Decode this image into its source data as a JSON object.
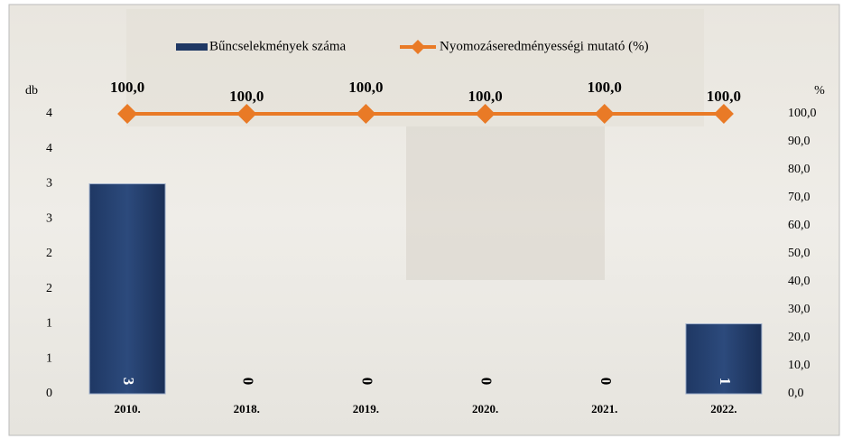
{
  "chart_data": {
    "type": "bar",
    "categories": [
      "2010.",
      "2018.",
      "2019.",
      "2020.",
      "2021.",
      "2022."
    ],
    "y_label": "db",
    "y2_label": "%",
    "ylim": [
      0,
      4
    ],
    "yticks": [
      {
        "value": 0,
        "label": "0"
      },
      {
        "value": 0.5,
        "label": "1"
      },
      {
        "value": 1,
        "label": "1"
      },
      {
        "value": 1.5,
        "label": "2"
      },
      {
        "value": 2,
        "label": "2"
      },
      {
        "value": 2.5,
        "label": "3"
      },
      {
        "value": 3,
        "label": "3"
      },
      {
        "value": 3.5,
        "label": "4"
      },
      {
        "value": 4,
        "label": "4"
      }
    ],
    "y2lim": [
      0,
      100
    ],
    "y2ticks": [
      {
        "value": 0,
        "label": "0,0"
      },
      {
        "value": 10,
        "label": "10,0"
      },
      {
        "value": 20,
        "label": "20,0"
      },
      {
        "value": 30,
        "label": "30,0"
      },
      {
        "value": 40,
        "label": "40,0"
      },
      {
        "value": 50,
        "label": "50,0"
      },
      {
        "value": 60,
        "label": "60,0"
      },
      {
        "value": 70,
        "label": "70,0"
      },
      {
        "value": 80,
        "label": "80,0"
      },
      {
        "value": 90,
        "label": "90,0"
      },
      {
        "value": 100,
        "label": "100,0"
      }
    ],
    "series": [
      {
        "name": "Bűncselekmények száma",
        "type": "bar",
        "color": "#1f3864",
        "values": [
          3,
          0,
          0,
          0,
          0,
          1
        ]
      },
      {
        "name": "Nyomozáseredményességi mutató (%)",
        "type": "line",
        "axis": "y2",
        "color": "#e97a26",
        "values": [
          100,
          100,
          100,
          100,
          100,
          100
        ],
        "value_labels": [
          "100,0",
          "100,0",
          "100,0",
          "100,0",
          "100,0",
          "100,0"
        ]
      }
    ]
  }
}
